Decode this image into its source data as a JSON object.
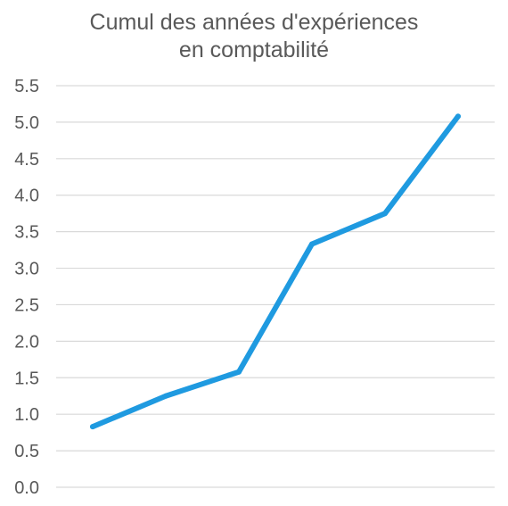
{
  "chart_data": {
    "type": "line",
    "title_line1": "Cumul des années d'expériences",
    "title_line2": "en comptabilité",
    "xlabel": "",
    "ylabel": "",
    "ylim": [
      0,
      5.5
    ],
    "y_ticks": [
      "0.0",
      "0.5",
      "1.0",
      "1.5",
      "2.0",
      "2.5",
      "3.0",
      "3.5",
      "4.0",
      "4.5",
      "5.0",
      "5.5"
    ],
    "grid": true,
    "series": [
      {
        "color": "#1f9ae0",
        "values": [
          0.83,
          1.25,
          1.58,
          3.33,
          3.75,
          5.08
        ]
      }
    ]
  }
}
